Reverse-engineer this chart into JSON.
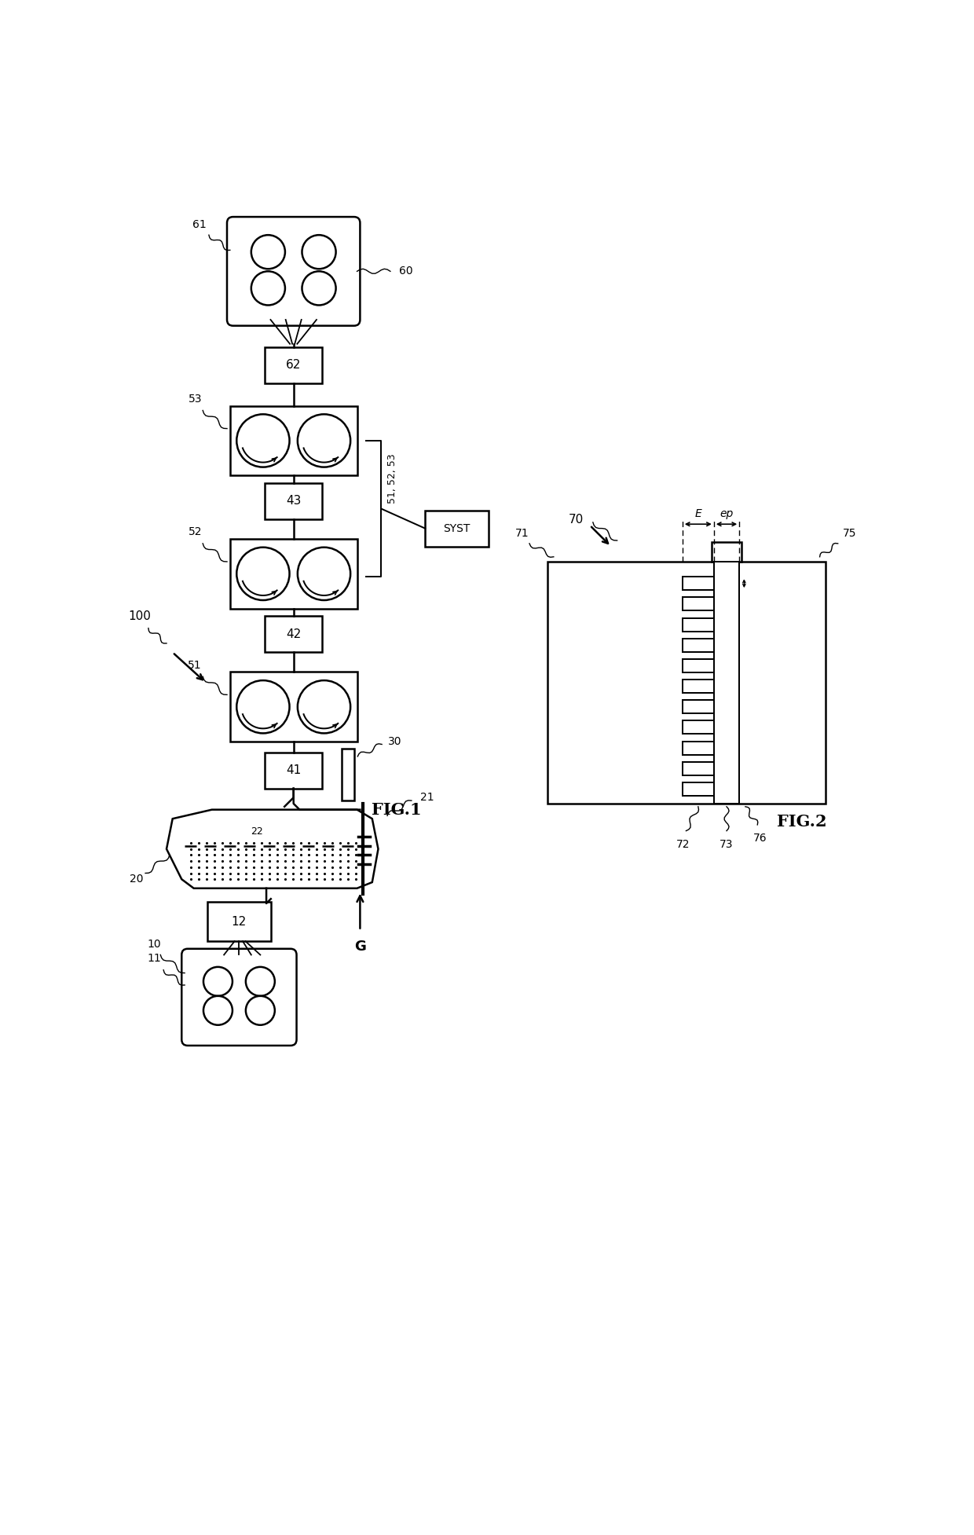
{
  "bg_color": "#ffffff",
  "line_color": "#000000",
  "fig_width": 12.4,
  "fig_height": 19.54,
  "fig1_label": "FIG.1",
  "fig2_label": "FIG.2",
  "label_100": "100",
  "label_60": "60",
  "label_61": "61",
  "label_62": "62",
  "label_53": "53",
  "label_43": "43",
  "label_52": "52",
  "label_42": "42",
  "label_51": "51",
  "label_41": "41",
  "label_30": "30",
  "label_20": "20",
  "label_21": "21",
  "label_22": "22",
  "label_12": "12",
  "label_10": "10",
  "label_11": "11",
  "label_G": "G",
  "label_SYST": "SYST",
  "label_51_52_53": "51, 52, 53",
  "label_70": "70",
  "label_71": "71",
  "label_72": "72",
  "label_73": "73",
  "label_75": "75",
  "label_76": "76",
  "label_E": "E",
  "label_ep": "ep"
}
